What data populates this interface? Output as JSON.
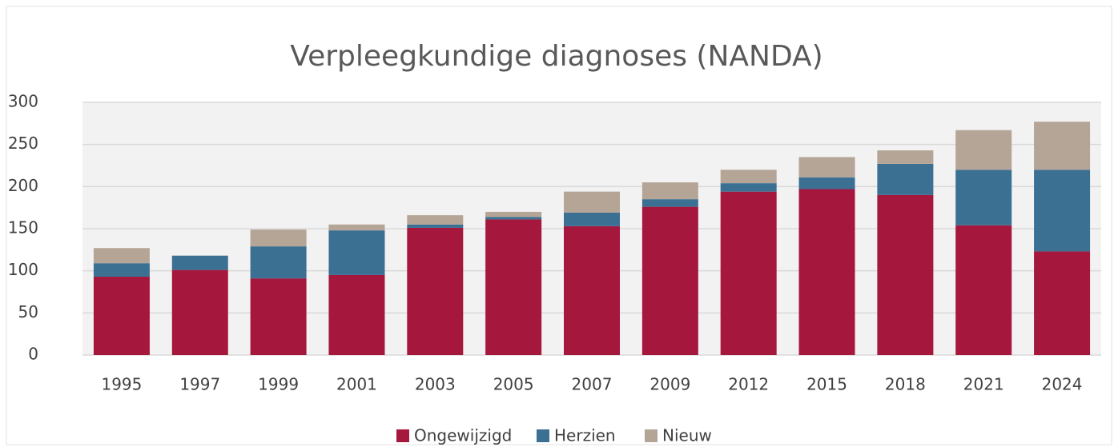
{
  "chart_data": {
    "type": "stacked_bar",
    "title": "Verpleegkundige diagnoses (NANDA)",
    "categories": [
      "1995",
      "1997",
      "1999",
      "2001",
      "2003",
      "2005",
      "2007",
      "2009",
      "2012",
      "2015",
      "2018",
      "2021",
      "2024"
    ],
    "series": [
      {
        "name": "Ongewijzigd",
        "color": "#a6173d",
        "values": [
          93,
          101,
          91,
          95,
          151,
          161,
          153,
          176,
          194,
          197,
          190,
          154,
          123
        ]
      },
      {
        "name": "Herzien",
        "color": "#3b7093",
        "values": [
          16,
          17,
          38,
          53,
          4,
          3,
          16,
          9,
          10,
          14,
          37,
          66,
          97
        ]
      },
      {
        "name": "Nieuw",
        "color": "#b5a596",
        "values": [
          18,
          0,
          20,
          7,
          11,
          6,
          25,
          20,
          16,
          24,
          16,
          47,
          57
        ]
      }
    ],
    "ylim": [
      0,
      300
    ],
    "yticks": [
      0,
      50,
      100,
      150,
      200,
      250,
      300
    ],
    "grid": true,
    "legend": "bottom"
  }
}
